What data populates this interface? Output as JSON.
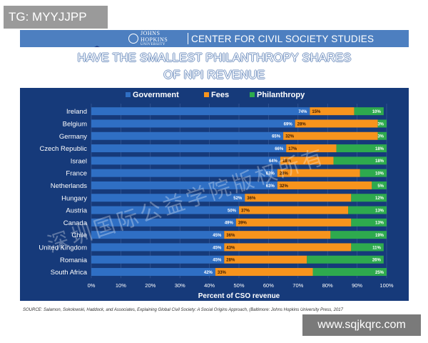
{
  "overlay": {
    "tag": "TG: MYYJJPP",
    "site": "www.sqjkqrc.com",
    "watermark": "深圳国际公益学院版权所有"
  },
  "header": {
    "org_line1": "JOHNS HOPKINS",
    "org_line2": "UNIVERSITY",
    "center": "CENTER FOR CIVIL SOCIETY STUDIES"
  },
  "slide": {
    "title_line1": "HAVE THE SMALLEST PHILANTHROPY SHARES",
    "title_line2": "OF NPI REVENUE"
  },
  "source": "SOURCE: Salamon, Sokolowski, Haddock, and Associates, Explaining Global Civil Society: A Social Origins Approach, (Baltimore: Johns Hopkins University Press, 2017",
  "colors": {
    "government": "#2f6fc4",
    "fees": "#f7941d",
    "philanthropy": "#2eaa4e",
    "panel": "#163a7a"
  },
  "chart_data": {
    "type": "bar",
    "orientation": "horizontal",
    "stacked": true,
    "xlabel": "Percent of CSO revenue",
    "xlim": [
      0,
      100
    ],
    "xticks": [
      "0%",
      "10%",
      "20%",
      "30%",
      "40%",
      "50%",
      "60%",
      "70%",
      "80%",
      "90%",
      "100%"
    ],
    "legend": "top",
    "categories": [
      "Ireland",
      "Belgium",
      "Germany",
      "Czech Republic",
      "Israel",
      "France",
      "Netherlands",
      "Hungary",
      "Austria",
      "Canada",
      "Chile",
      "United Kingdom",
      "Romania",
      "South Africa"
    ],
    "series": [
      {
        "name": "Government",
        "color": "#2f6fc4",
        "values": [
          74,
          69,
          65,
          66,
          64,
          63,
          63,
          52,
          50,
          49,
          45,
          45,
          45,
          42
        ]
      },
      {
        "name": "Fees",
        "color": "#f7941d",
        "values": [
          15,
          28,
          32,
          17,
          18,
          28,
          32,
          36,
          37,
          39,
          36,
          43,
          28,
          33
        ]
      },
      {
        "name": "Philanthropy",
        "color": "#2eaa4e",
        "values": [
          10,
          3,
          3,
          18,
          18,
          10,
          5,
          12,
          13,
          13,
          19,
          11,
          26,
          25
        ]
      }
    ],
    "value_labels": [
      [
        "74%",
        "15%",
        "10%"
      ],
      [
        "69%",
        "28%",
        "3%"
      ],
      [
        "65%",
        "32%",
        "3%"
      ],
      [
        "66%",
        "17%",
        "18%"
      ],
      [
        "64%",
        "18%",
        "18%"
      ],
      [
        "63%",
        "28%",
        "10%"
      ],
      [
        "63%",
        "32%",
        "5%"
      ],
      [
        "52%",
        "36%",
        "12%"
      ],
      [
        "50%",
        "37%",
        "13%"
      ],
      [
        "49%",
        "39%",
        "13%"
      ],
      [
        "45%",
        "36%",
        "19%"
      ],
      [
        "45%",
        "43%",
        "11%"
      ],
      [
        "45%",
        "28%",
        "26%"
      ],
      [
        "42%",
        "33%",
        "25%"
      ]
    ]
  }
}
